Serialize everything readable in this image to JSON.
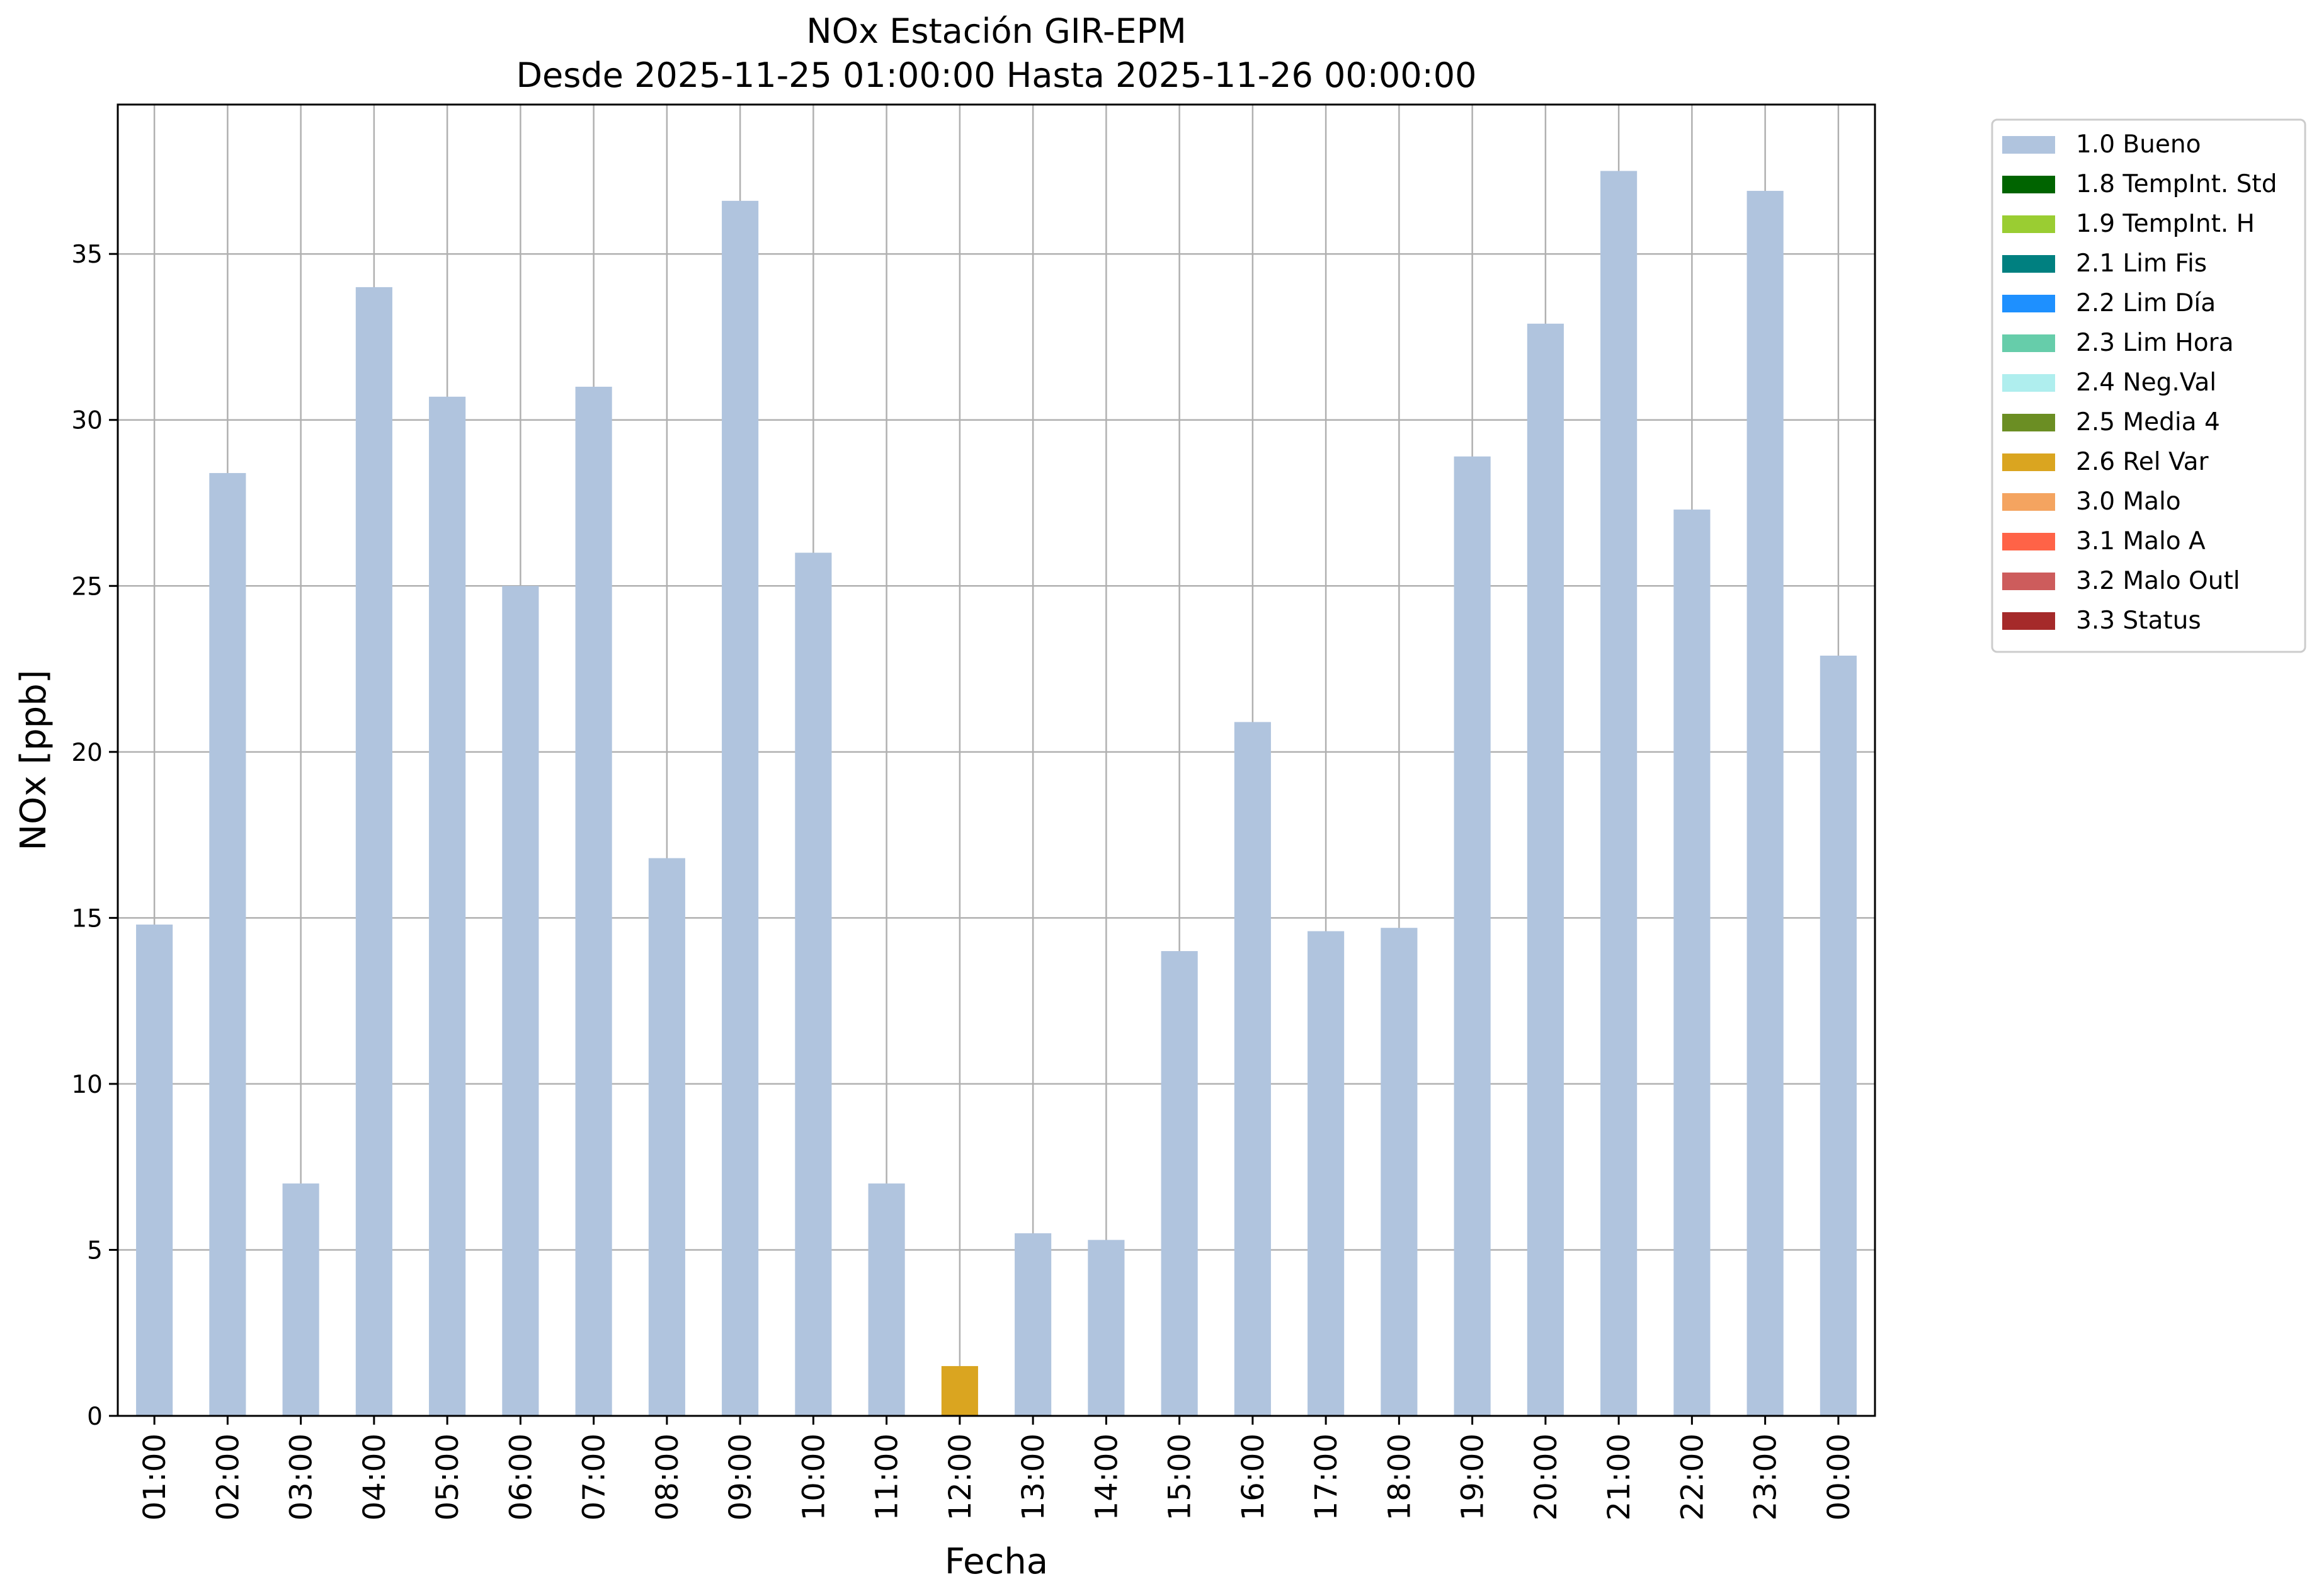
{
  "chart_data": {
    "type": "bar",
    "title_line1": "NOx Estación GIR-EPM",
    "title_line2": "Desde 2025-11-25 01:00:00 Hasta 2025-11-26 00:00:00",
    "xlabel": "Fecha",
    "ylabel": "NOx [ppb]",
    "ylim": [
      0,
      39.5
    ],
    "yticks": [
      "0",
      "5",
      "10",
      "15",
      "20",
      "25",
      "30",
      "35"
    ],
    "grid": true,
    "legend_position": "outside right, top",
    "categories": [
      "01:00",
      "02:00",
      "03:00",
      "04:00",
      "05:00",
      "06:00",
      "07:00",
      "08:00",
      "09:00",
      "10:00",
      "11:00",
      "12:00",
      "13:00",
      "14:00",
      "15:00",
      "16:00",
      "17:00",
      "18:00",
      "19:00",
      "20:00",
      "21:00",
      "22:00",
      "23:00",
      "00:00"
    ],
    "values": [
      14.8,
      28.4,
      7.0,
      34.0,
      30.7,
      25.0,
      31.0,
      16.8,
      36.6,
      26.0,
      7.0,
      1.5,
      5.5,
      5.3,
      14.0,
      20.9,
      14.6,
      14.7,
      28.9,
      32.9,
      37.5,
      27.3,
      36.9,
      22.9
    ],
    "flags": [
      "1.0 Bueno",
      "1.0 Bueno",
      "1.0 Bueno",
      "1.0 Bueno",
      "1.0 Bueno",
      "1.0 Bueno",
      "1.0 Bueno",
      "1.0 Bueno",
      "1.0 Bueno",
      "1.0 Bueno",
      "1.0 Bueno",
      "2.6 Rel Var",
      "1.0 Bueno",
      "1.0 Bueno",
      "1.0 Bueno",
      "1.0 Bueno",
      "1.0 Bueno",
      "1.0 Bueno",
      "1.0 Bueno",
      "1.0 Bueno",
      "1.0 Bueno",
      "1.0 Bueno",
      "1.0 Bueno",
      "1.0 Bueno"
    ],
    "legend": [
      {
        "label": "1.0 Bueno",
        "color": "#b0c4de"
      },
      {
        "label": "1.8 TempInt. Std",
        "color": "#006400"
      },
      {
        "label": "1.9 TempInt. H",
        "color": "#9acd32"
      },
      {
        "label": "2.1 Lim Fis",
        "color": "#008080"
      },
      {
        "label": "2.2 Lim Día",
        "color": "#1e90ff"
      },
      {
        "label": "2.3 Lim Hora",
        "color": "#66cdaa"
      },
      {
        "label": "2.4 Neg.Val",
        "color": "#afeeee"
      },
      {
        "label": "2.5 Media 4",
        "color": "#6b8e23"
      },
      {
        "label": "2.6 Rel Var",
        "color": "#daa520"
      },
      {
        "label": "3.0 Malo",
        "color": "#f4a460"
      },
      {
        "label": "3.1 Malo A",
        "color": "#ff6347"
      },
      {
        "label": "3.2 Malo Outl",
        "color": "#cd5c5c"
      },
      {
        "label": "3.3 Status",
        "color": "#a52a2a"
      }
    ],
    "grid_color": "#b0b0b0"
  }
}
